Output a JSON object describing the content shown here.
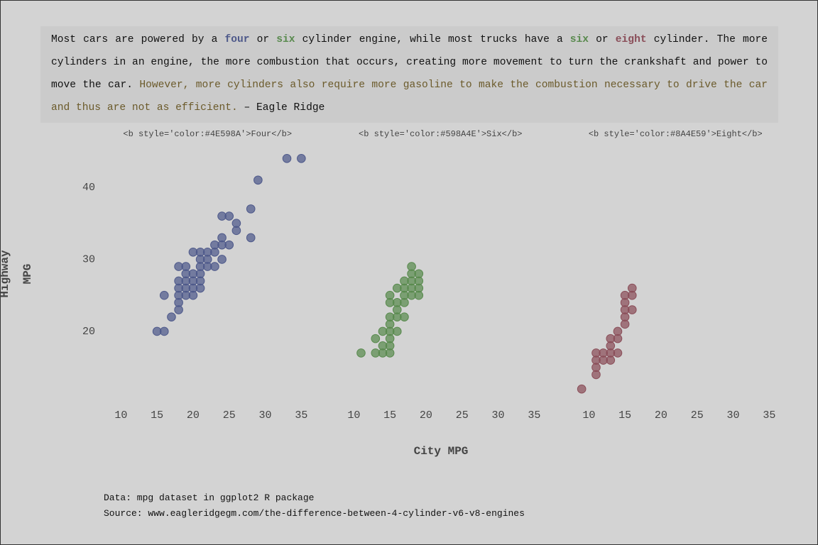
{
  "header": {
    "parts": [
      {
        "text": "Most cars are powered by a "
      },
      {
        "text": "four",
        "color": "#4E598A",
        "bold": true
      },
      {
        "text": " or "
      },
      {
        "text": "six",
        "color": "#598A4E",
        "bold": true
      },
      {
        "text": " cylinder engine, while most trucks have a "
      },
      {
        "text": "six",
        "color": "#598A4E",
        "bold": true
      },
      {
        "text": " or "
      },
      {
        "text": "eight",
        "color": "#8A4E59",
        "bold": true
      },
      {
        "text": " cylinder. The more cylinders in an engine, the more combustion that occurs, creating more movement to turn the crankshaft and power to move the car. "
      },
      {
        "text": "However, more cylinders also require more gasoline to make the combustion necessary to drive the car and thus are not as efficient.",
        "color": "#6B5A2A"
      },
      {
        "text": " – Eagle Ridge"
      }
    ]
  },
  "axes": {
    "xlabel": "City MPG",
    "ylabel": "Highway MPG"
  },
  "chart_data": [
    {
      "type": "scatter",
      "title": "<b style='color:#4E598A'>Four</b>",
      "color": "#4E598A",
      "x": [
        15,
        16,
        16,
        17,
        18,
        18,
        18,
        18,
        18,
        18,
        19,
        19,
        19,
        19,
        19,
        20,
        20,
        20,
        20,
        20,
        21,
        21,
        21,
        21,
        21,
        21,
        22,
        22,
        22,
        23,
        23,
        23,
        24,
        24,
        24,
        24,
        25,
        25,
        26,
        26,
        28,
        28,
        29,
        33,
        35
      ],
      "y": [
        20,
        20,
        25,
        22,
        23,
        24,
        25,
        26,
        27,
        29,
        29,
        28,
        27,
        26,
        25,
        25,
        26,
        27,
        28,
        31,
        31,
        30,
        29,
        28,
        27,
        26,
        30,
        31,
        29,
        29,
        31,
        32,
        30,
        32,
        33,
        36,
        32,
        36,
        34,
        35,
        33,
        37,
        41,
        44,
        44
      ],
      "xlim": [
        8,
        36
      ],
      "xticks": [
        10,
        15,
        20,
        25,
        30,
        35
      ],
      "ylim": [
        10,
        46
      ],
      "yticks": [
        20,
        30,
        40
      ]
    },
    {
      "type": "scatter",
      "title": "<b style='color:#598A4E'>Six</b>",
      "color": "#598A4E",
      "x": [
        11,
        13,
        13,
        14,
        14,
        14,
        15,
        15,
        15,
        15,
        15,
        15,
        15,
        15,
        16,
        16,
        16,
        16,
        16,
        17,
        17,
        17,
        17,
        17,
        18,
        18,
        18,
        18,
        18,
        19,
        19,
        19,
        19
      ],
      "y": [
        17,
        17,
        19,
        17,
        18,
        20,
        17,
        18,
        19,
        20,
        21,
        22,
        24,
        25,
        20,
        22,
        23,
        24,
        26,
        22,
        24,
        25,
        26,
        27,
        25,
        26,
        27,
        28,
        29,
        25,
        26,
        27,
        28
      ],
      "xlim": [
        8,
        36
      ],
      "xticks": [
        10,
        15,
        20,
        25,
        30,
        35
      ],
      "ylim": [
        10,
        46
      ]
    },
    {
      "type": "scatter",
      "title": "<b style='color:#8A4E59'>Eight</b>",
      "color": "#8A4E59",
      "x": [
        9,
        11,
        11,
        11,
        11,
        12,
        12,
        13,
        13,
        13,
        13,
        14,
        14,
        14,
        15,
        15,
        15,
        15,
        15,
        16,
        16,
        16
      ],
      "y": [
        12,
        14,
        15,
        16,
        17,
        16,
        17,
        16,
        17,
        18,
        19,
        17,
        19,
        20,
        21,
        22,
        23,
        24,
        25,
        23,
        25,
        26
      ],
      "xlim": [
        8,
        36
      ],
      "xticks": [
        10,
        15,
        20,
        25,
        30,
        35
      ],
      "ylim": [
        10,
        46
      ]
    }
  ],
  "caption": [
    "Data: mpg dataset in ggplot2 R package",
    "Source: www.eagleridgegm.com/the-difference-between-4-cylinder-v6-v8-engines"
  ]
}
